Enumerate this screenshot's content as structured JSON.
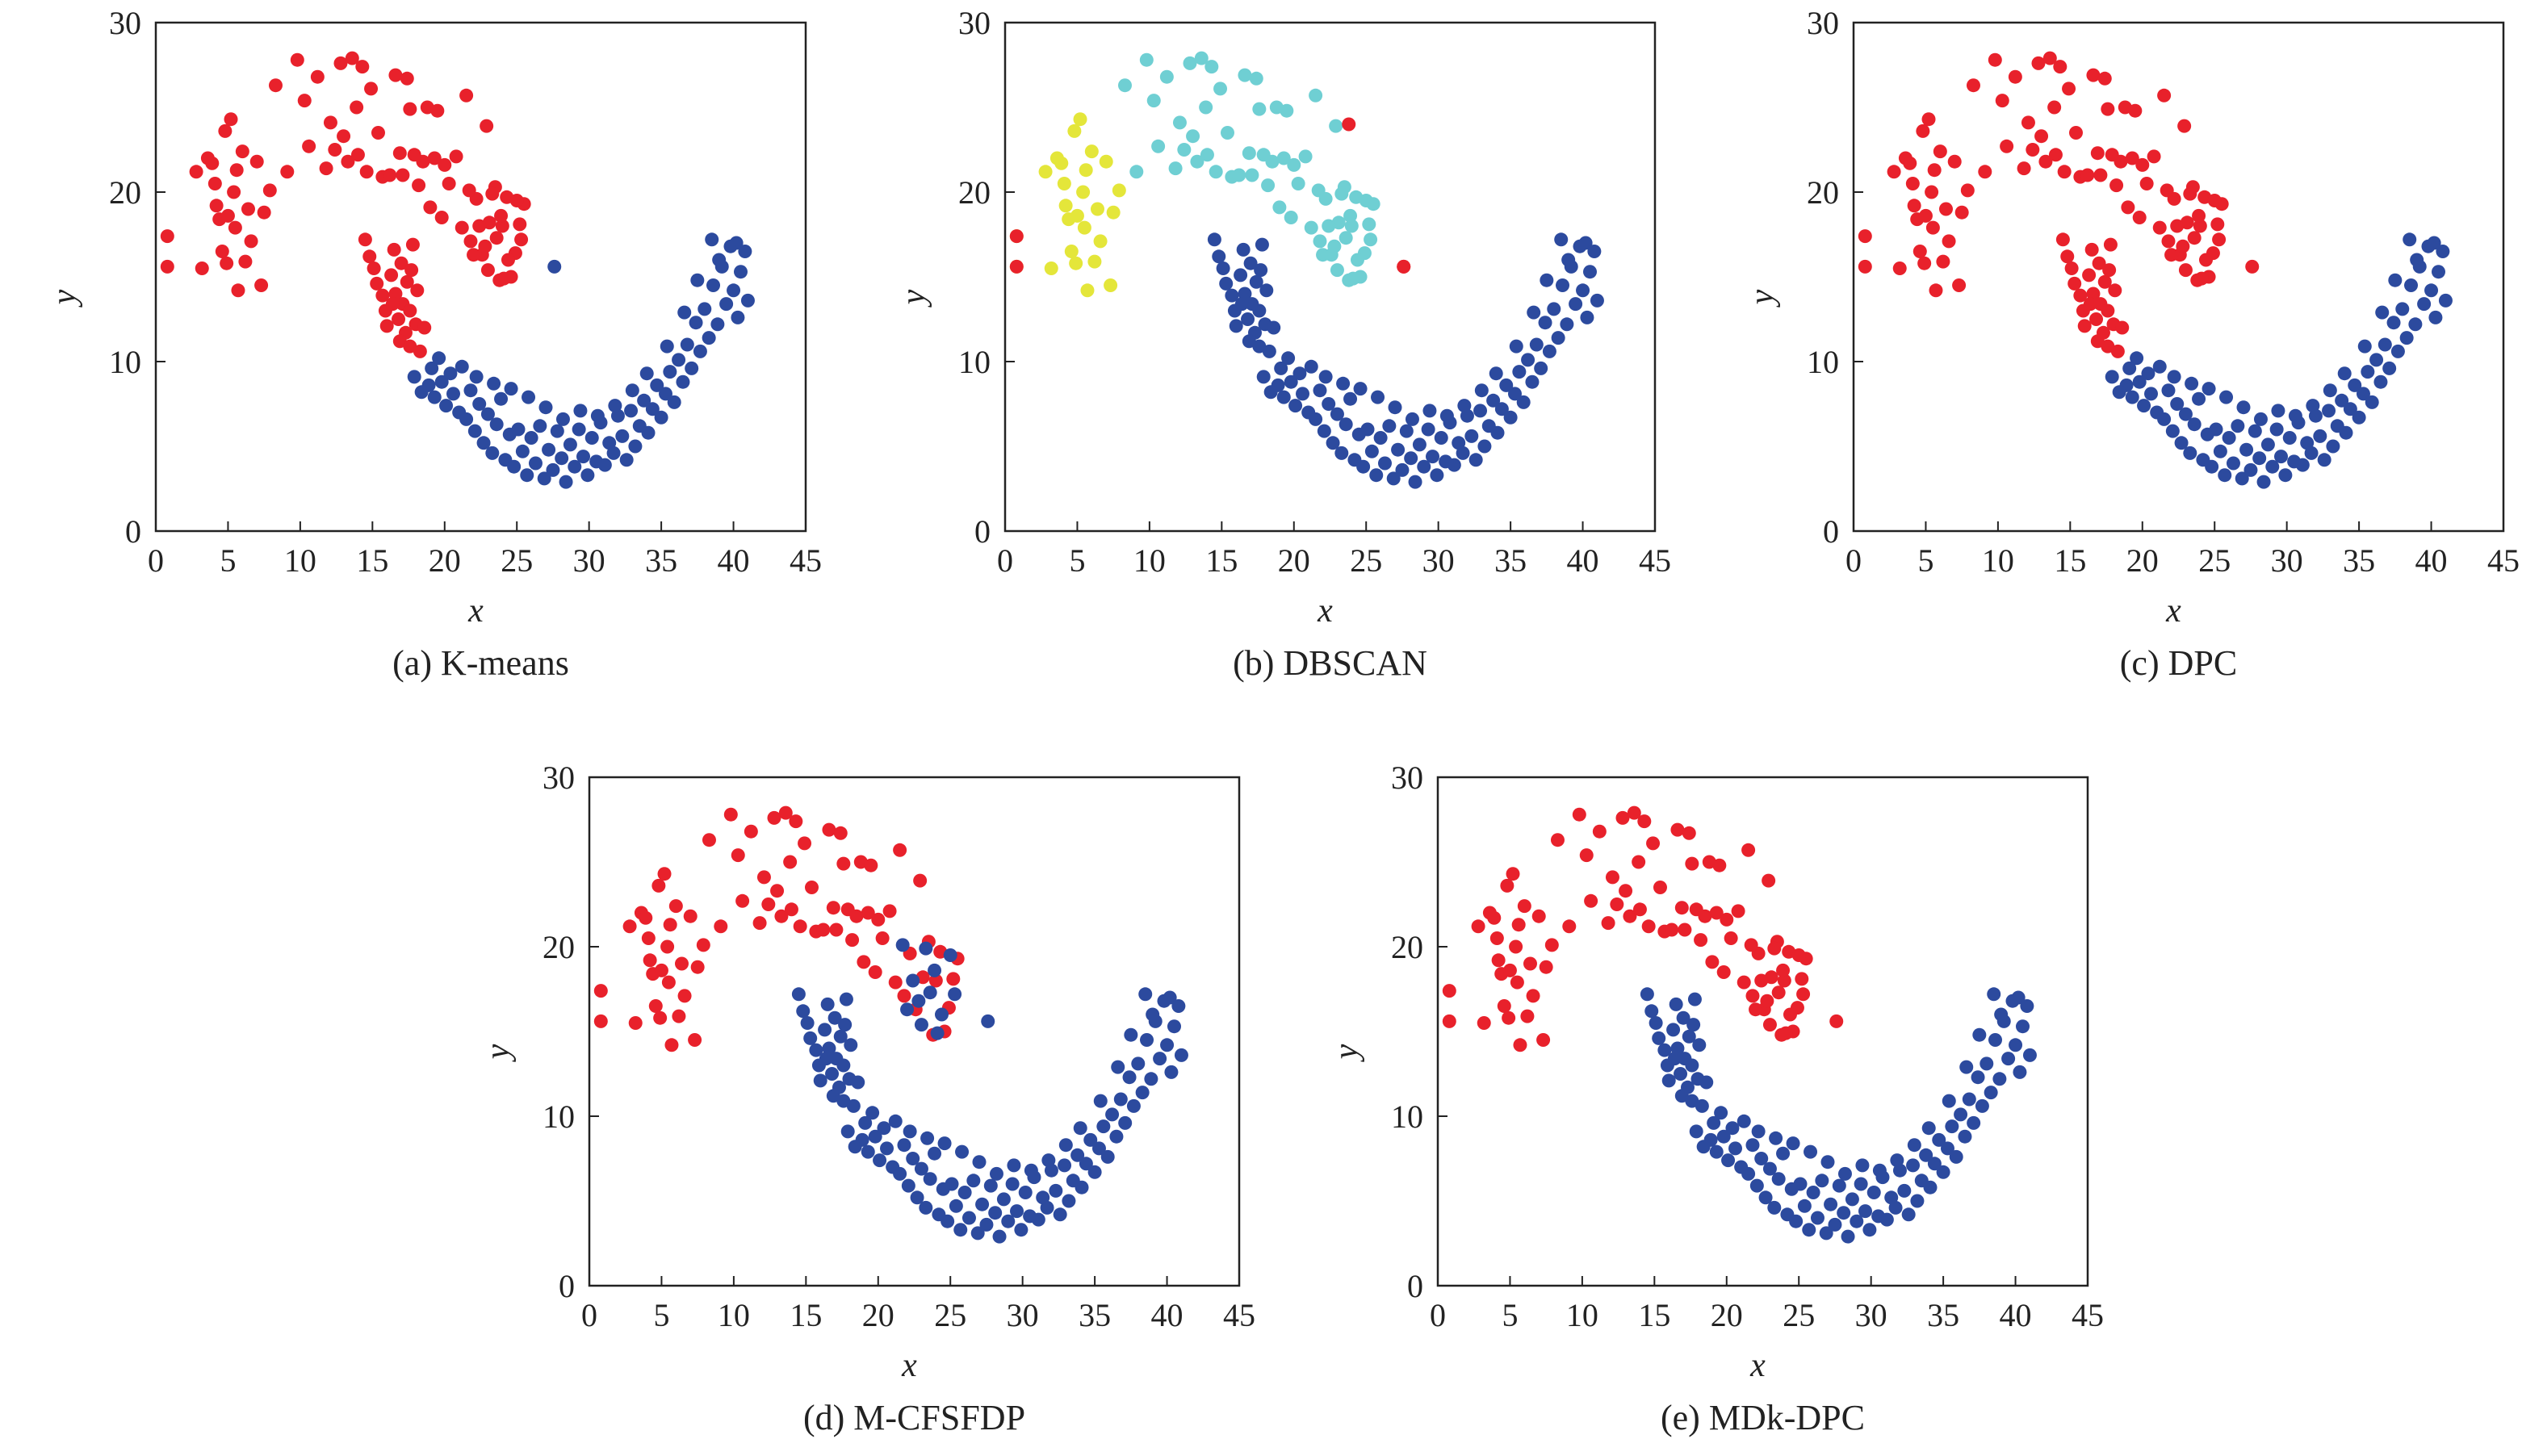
{
  "colors": {
    "red": "#e8212b",
    "blue": "#2c4a9e",
    "yellow": "#e4e63a",
    "cyan": "#6fcfd3"
  },
  "chart_data": [
    {
      "type": "scatter",
      "caption": "(a) K-means",
      "xlabel": "x",
      "ylabel": "y",
      "xlim": [
        0,
        45
      ],
      "ylim": [
        0,
        30
      ],
      "xticks": [
        "0",
        "5",
        "10",
        "15",
        "20",
        "25",
        "30",
        "35",
        "40",
        "45"
      ],
      "yticks": [
        "0",
        "10",
        "20",
        "30"
      ],
      "grid": false,
      "legend": "none",
      "assignment": {
        "moon_a": "red",
        "moon_b": "blue",
        "bridge_a": "red",
        "bridge_b": "blue",
        "outlier": "blue"
      }
    },
    {
      "type": "scatter",
      "caption": "(b) DBSCAN",
      "xlabel": "x",
      "ylabel": "y",
      "xlim": [
        0,
        45
      ],
      "ylim": [
        0,
        30
      ],
      "xticks": [
        "0",
        "5",
        "10",
        "15",
        "20",
        "25",
        "30",
        "35",
        "40",
        "45"
      ],
      "yticks": [
        "0",
        "10",
        "20",
        "30"
      ],
      "grid": false,
      "legend": "none",
      "assignment": {
        "moon_a": "cyan",
        "moon_a_left": "yellow",
        "moon_b": "blue",
        "bridge_a": "blue",
        "bridge_b": "blue",
        "outlier": "red",
        "noise": "red"
      }
    },
    {
      "type": "scatter",
      "caption": "(c) DPC",
      "xlabel": "x",
      "ylabel": "y",
      "xlim": [
        0,
        45
      ],
      "ylim": [
        0,
        30
      ],
      "xticks": [
        "0",
        "5",
        "10",
        "15",
        "20",
        "25",
        "30",
        "35",
        "40",
        "45"
      ],
      "yticks": [
        "0",
        "10",
        "20",
        "30"
      ],
      "grid": false,
      "legend": "none",
      "assignment": {
        "moon_a": "red",
        "moon_b": "blue",
        "bridge_a": "red",
        "bridge_b": "blue",
        "outlier": "red"
      }
    },
    {
      "type": "scatter",
      "caption": "(d) M-CFSFDP",
      "xlabel": "x",
      "ylabel": "y",
      "xlim": [
        0,
        45
      ],
      "ylim": [
        0,
        30
      ],
      "xticks": [
        "0",
        "5",
        "10",
        "15",
        "20",
        "25",
        "30",
        "35",
        "40",
        "45"
      ],
      "yticks": [
        "0",
        "10",
        "20",
        "30"
      ],
      "grid": false,
      "legend": "none",
      "assignment": {
        "moon_a": "red",
        "moon_a_tail": "blue",
        "moon_b": "blue",
        "bridge_a": "blue",
        "bridge_b": "blue",
        "outlier": "blue"
      }
    },
    {
      "type": "scatter",
      "caption": "(e) MDk-DPC",
      "xlabel": "x",
      "ylabel": "y",
      "xlim": [
        0,
        45
      ],
      "ylim": [
        0,
        30
      ],
      "xticks": [
        "0",
        "5",
        "10",
        "15",
        "20",
        "25",
        "30",
        "35",
        "40",
        "45"
      ],
      "yticks": [
        "0",
        "10",
        "20",
        "30"
      ],
      "grid": false,
      "legend": "none",
      "assignment": {
        "moon_a": "red",
        "moon_b": "blue",
        "bridge_a": "blue",
        "bridge_b": "blue",
        "outlier": "red"
      }
    }
  ],
  "points": {
    "moon_a_left": [
      [
        0.8,
        17.4
      ],
      [
        0.8,
        15.6
      ],
      [
        2.8,
        21.2
      ],
      [
        3.2,
        15.5
      ],
      [
        3.6,
        22.0
      ],
      [
        3.9,
        21.7
      ],
      [
        4.1,
        20.5
      ],
      [
        4.2,
        19.2
      ],
      [
        4.4,
        18.4
      ],
      [
        4.6,
        16.5
      ],
      [
        4.8,
        23.6
      ],
      [
        4.9,
        15.8
      ],
      [
        5.0,
        18.6
      ],
      [
        5.2,
        24.3
      ],
      [
        5.4,
        20.0
      ],
      [
        5.5,
        17.9
      ],
      [
        5.6,
        21.3
      ],
      [
        5.7,
        14.2
      ],
      [
        6.0,
        22.4
      ],
      [
        6.2,
        15.9
      ],
      [
        6.4,
        19.0
      ],
      [
        6.6,
        17.1
      ],
      [
        7.0,
        21.8
      ],
      [
        7.3,
        14.5
      ],
      [
        7.5,
        18.8
      ],
      [
        7.9,
        20.1
      ]
    ],
    "moon_a": [
      [
        8.3,
        26.3
      ],
      [
        9.1,
        21.2
      ],
      [
        9.8,
        27.8
      ],
      [
        10.3,
        25.4
      ],
      [
        10.6,
        22.7
      ],
      [
        11.2,
        26.8
      ],
      [
        11.8,
        21.4
      ],
      [
        12.1,
        24.1
      ],
      [
        12.4,
        22.5
      ],
      [
        12.8,
        27.6
      ],
      [
        13.0,
        23.3
      ],
      [
        13.3,
        21.8
      ],
      [
        13.6,
        27.9
      ],
      [
        13.9,
        25.0
      ],
      [
        14.0,
        22.2
      ],
      [
        14.3,
        27.4
      ],
      [
        14.6,
        21.2
      ],
      [
        14.9,
        26.1
      ],
      [
        15.4,
        23.5
      ],
      [
        15.7,
        20.9
      ],
      [
        16.2,
        21.0
      ],
      [
        16.6,
        26.9
      ],
      [
        16.9,
        22.3
      ],
      [
        17.1,
        21.0
      ],
      [
        17.4,
        26.7
      ],
      [
        17.6,
        24.9
      ],
      [
        17.9,
        22.2
      ],
      [
        18.2,
        20.4
      ],
      [
        18.5,
        21.8
      ],
      [
        18.8,
        25.0
      ],
      [
        19.0,
        19.1
      ],
      [
        19.3,
        22.0
      ],
      [
        19.5,
        24.8
      ],
      [
        19.8,
        18.5
      ],
      [
        20.0,
        21.6
      ],
      [
        20.3,
        20.5
      ],
      [
        20.8,
        22.1
      ],
      [
        21.2,
        17.9
      ],
      [
        21.5,
        25.7
      ],
      [
        21.8,
        17.1
      ],
      [
        22.2,
        19.6
      ],
      [
        22.6,
        16.3
      ],
      [
        22.9,
        23.9
      ],
      [
        23.1,
        18.2
      ],
      [
        23.5,
        20.3
      ],
      [
        23.8,
        14.8
      ],
      [
        24.0,
        18.0
      ],
      [
        24.3,
        19.7
      ],
      [
        24.6,
        15.0
      ],
      [
        24.9,
        16.4
      ],
      [
        25.2,
        18.1
      ],
      [
        25.5,
        19.3
      ]
    ],
    "moon_a_tail": [
      [
        21.7,
        20.1
      ],
      [
        22.4,
        18.0
      ],
      [
        22.8,
        16.8
      ],
      [
        23.3,
        19.9
      ],
      [
        23.6,
        17.3
      ],
      [
        24.1,
        14.9
      ],
      [
        24.4,
        16.0
      ],
      [
        25.0,
        19.5
      ],
      [
        25.3,
        17.2
      ],
      [
        22.0,
        16.3
      ],
      [
        23.0,
        15.4
      ],
      [
        23.9,
        18.6
      ]
    ],
    "outlier": [
      [
        27.6,
        15.6
      ]
    ],
    "bridge_a": [
      [
        14.5,
        17.2
      ],
      [
        14.8,
        16.2
      ],
      [
        15.1,
        15.5
      ],
      [
        15.3,
        14.6
      ],
      [
        15.7,
        13.9
      ],
      [
        15.9,
        13.0
      ],
      [
        16.0,
        12.1
      ],
      [
        16.3,
        15.1
      ],
      [
        16.5,
        16.6
      ],
      [
        16.6,
        14.0
      ],
      [
        16.8,
        12.5
      ],
      [
        17.0,
        15.8
      ],
      [
        17.1,
        13.4
      ],
      [
        17.3,
        11.7
      ],
      [
        17.4,
        14.7
      ],
      [
        17.6,
        13.0
      ],
      [
        17.8,
        16.9
      ],
      [
        18.0,
        12.2
      ],
      [
        18.1,
        14.2
      ],
      [
        16.9,
        11.2
      ],
      [
        17.6,
        10.9
      ],
      [
        18.3,
        10.6
      ],
      [
        18.6,
        12.0
      ],
      [
        16.4,
        13.4
      ],
      [
        17.7,
        15.4
      ]
    ],
    "bridge_b": [
      [
        18.9,
        8.6
      ],
      [
        19.1,
        9.6
      ],
      [
        19.3,
        7.9
      ],
      [
        19.6,
        10.2
      ],
      [
        19.8,
        8.8
      ],
      [
        20.1,
        7.4
      ],
      [
        20.4,
        9.3
      ],
      [
        20.6,
        8.1
      ],
      [
        21.0,
        7.0
      ],
      [
        21.2,
        9.7
      ],
      [
        17.9,
        9.1
      ],
      [
        18.4,
        8.2
      ]
    ],
    "moon_b": [
      [
        21.5,
        6.6
      ],
      [
        21.8,
        8.3
      ],
      [
        22.1,
        5.9
      ],
      [
        22.4,
        7.5
      ],
      [
        22.7,
        5.2
      ],
      [
        23.0,
        6.9
      ],
      [
        23.3,
        4.6
      ],
      [
        23.6,
        6.3
      ],
      [
        23.9,
        7.8
      ],
      [
        24.2,
        4.2
      ],
      [
        24.5,
        5.7
      ],
      [
        24.8,
        3.8
      ],
      [
        25.1,
        6.0
      ],
      [
        25.4,
        4.7
      ],
      [
        25.7,
        3.3
      ],
      [
        26.0,
        5.5
      ],
      [
        26.3,
        4.0
      ],
      [
        26.6,
        6.2
      ],
      [
        26.9,
        3.1
      ],
      [
        27.2,
        4.8
      ],
      [
        27.5,
        3.6
      ],
      [
        27.8,
        5.9
      ],
      [
        28.1,
        4.3
      ],
      [
        28.4,
        2.9
      ],
      [
        28.7,
        5.1
      ],
      [
        29.0,
        3.8
      ],
      [
        29.3,
        6.0
      ],
      [
        29.6,
        4.4
      ],
      [
        29.9,
        3.3
      ],
      [
        30.2,
        5.5
      ],
      [
        30.5,
        4.1
      ],
      [
        30.8,
        6.4
      ],
      [
        31.1,
        3.9
      ],
      [
        31.4,
        5.2
      ],
      [
        31.7,
        4.6
      ],
      [
        32.0,
        6.8
      ],
      [
        32.3,
        5.6
      ],
      [
        32.6,
        4.2
      ],
      [
        32.9,
        7.1
      ],
      [
        33.2,
        5.0
      ],
      [
        33.5,
        6.2
      ],
      [
        33.8,
        7.7
      ],
      [
        34.1,
        5.8
      ],
      [
        34.4,
        7.2
      ],
      [
        34.7,
        8.6
      ],
      [
        35.0,
        6.7
      ],
      [
        35.3,
        8.1
      ],
      [
        35.6,
        9.4
      ],
      [
        35.9,
        7.6
      ],
      [
        36.2,
        10.1
      ],
      [
        36.5,
        8.8
      ],
      [
        36.8,
        11.0
      ],
      [
        37.1,
        9.6
      ],
      [
        37.4,
        12.3
      ],
      [
        37.7,
        10.6
      ],
      [
        38.0,
        13.1
      ],
      [
        38.3,
        11.4
      ],
      [
        38.6,
        14.5
      ],
      [
        38.9,
        12.2
      ],
      [
        39.2,
        15.6
      ],
      [
        39.5,
        13.4
      ],
      [
        39.8,
        16.8
      ],
      [
        40.0,
        14.2
      ],
      [
        40.3,
        12.6
      ],
      [
        40.5,
        15.3
      ],
      [
        40.8,
        16.5
      ],
      [
        41.0,
        13.6
      ],
      [
        38.5,
        17.2
      ],
      [
        39.0,
        16.0
      ],
      [
        40.2,
        17.0
      ],
      [
        37.5,
        14.8
      ],
      [
        36.6,
        12.9
      ],
      [
        35.4,
        10.9
      ],
      [
        34.0,
        9.3
      ],
      [
        33.0,
        8.3
      ],
      [
        31.8,
        7.4
      ],
      [
        30.6,
        6.8
      ],
      [
        29.4,
        7.1
      ],
      [
        28.2,
        6.6
      ],
      [
        27.0,
        7.3
      ],
      [
        25.8,
        7.9
      ],
      [
        24.6,
        8.4
      ],
      [
        23.4,
        8.7
      ],
      [
        22.2,
        9.1
      ]
    ],
    "noise": [
      [
        0.8,
        17.4
      ],
      [
        0.8,
        15.6
      ],
      [
        23.8,
        24.0
      ],
      [
        27.6,
        15.6
      ]
    ]
  }
}
